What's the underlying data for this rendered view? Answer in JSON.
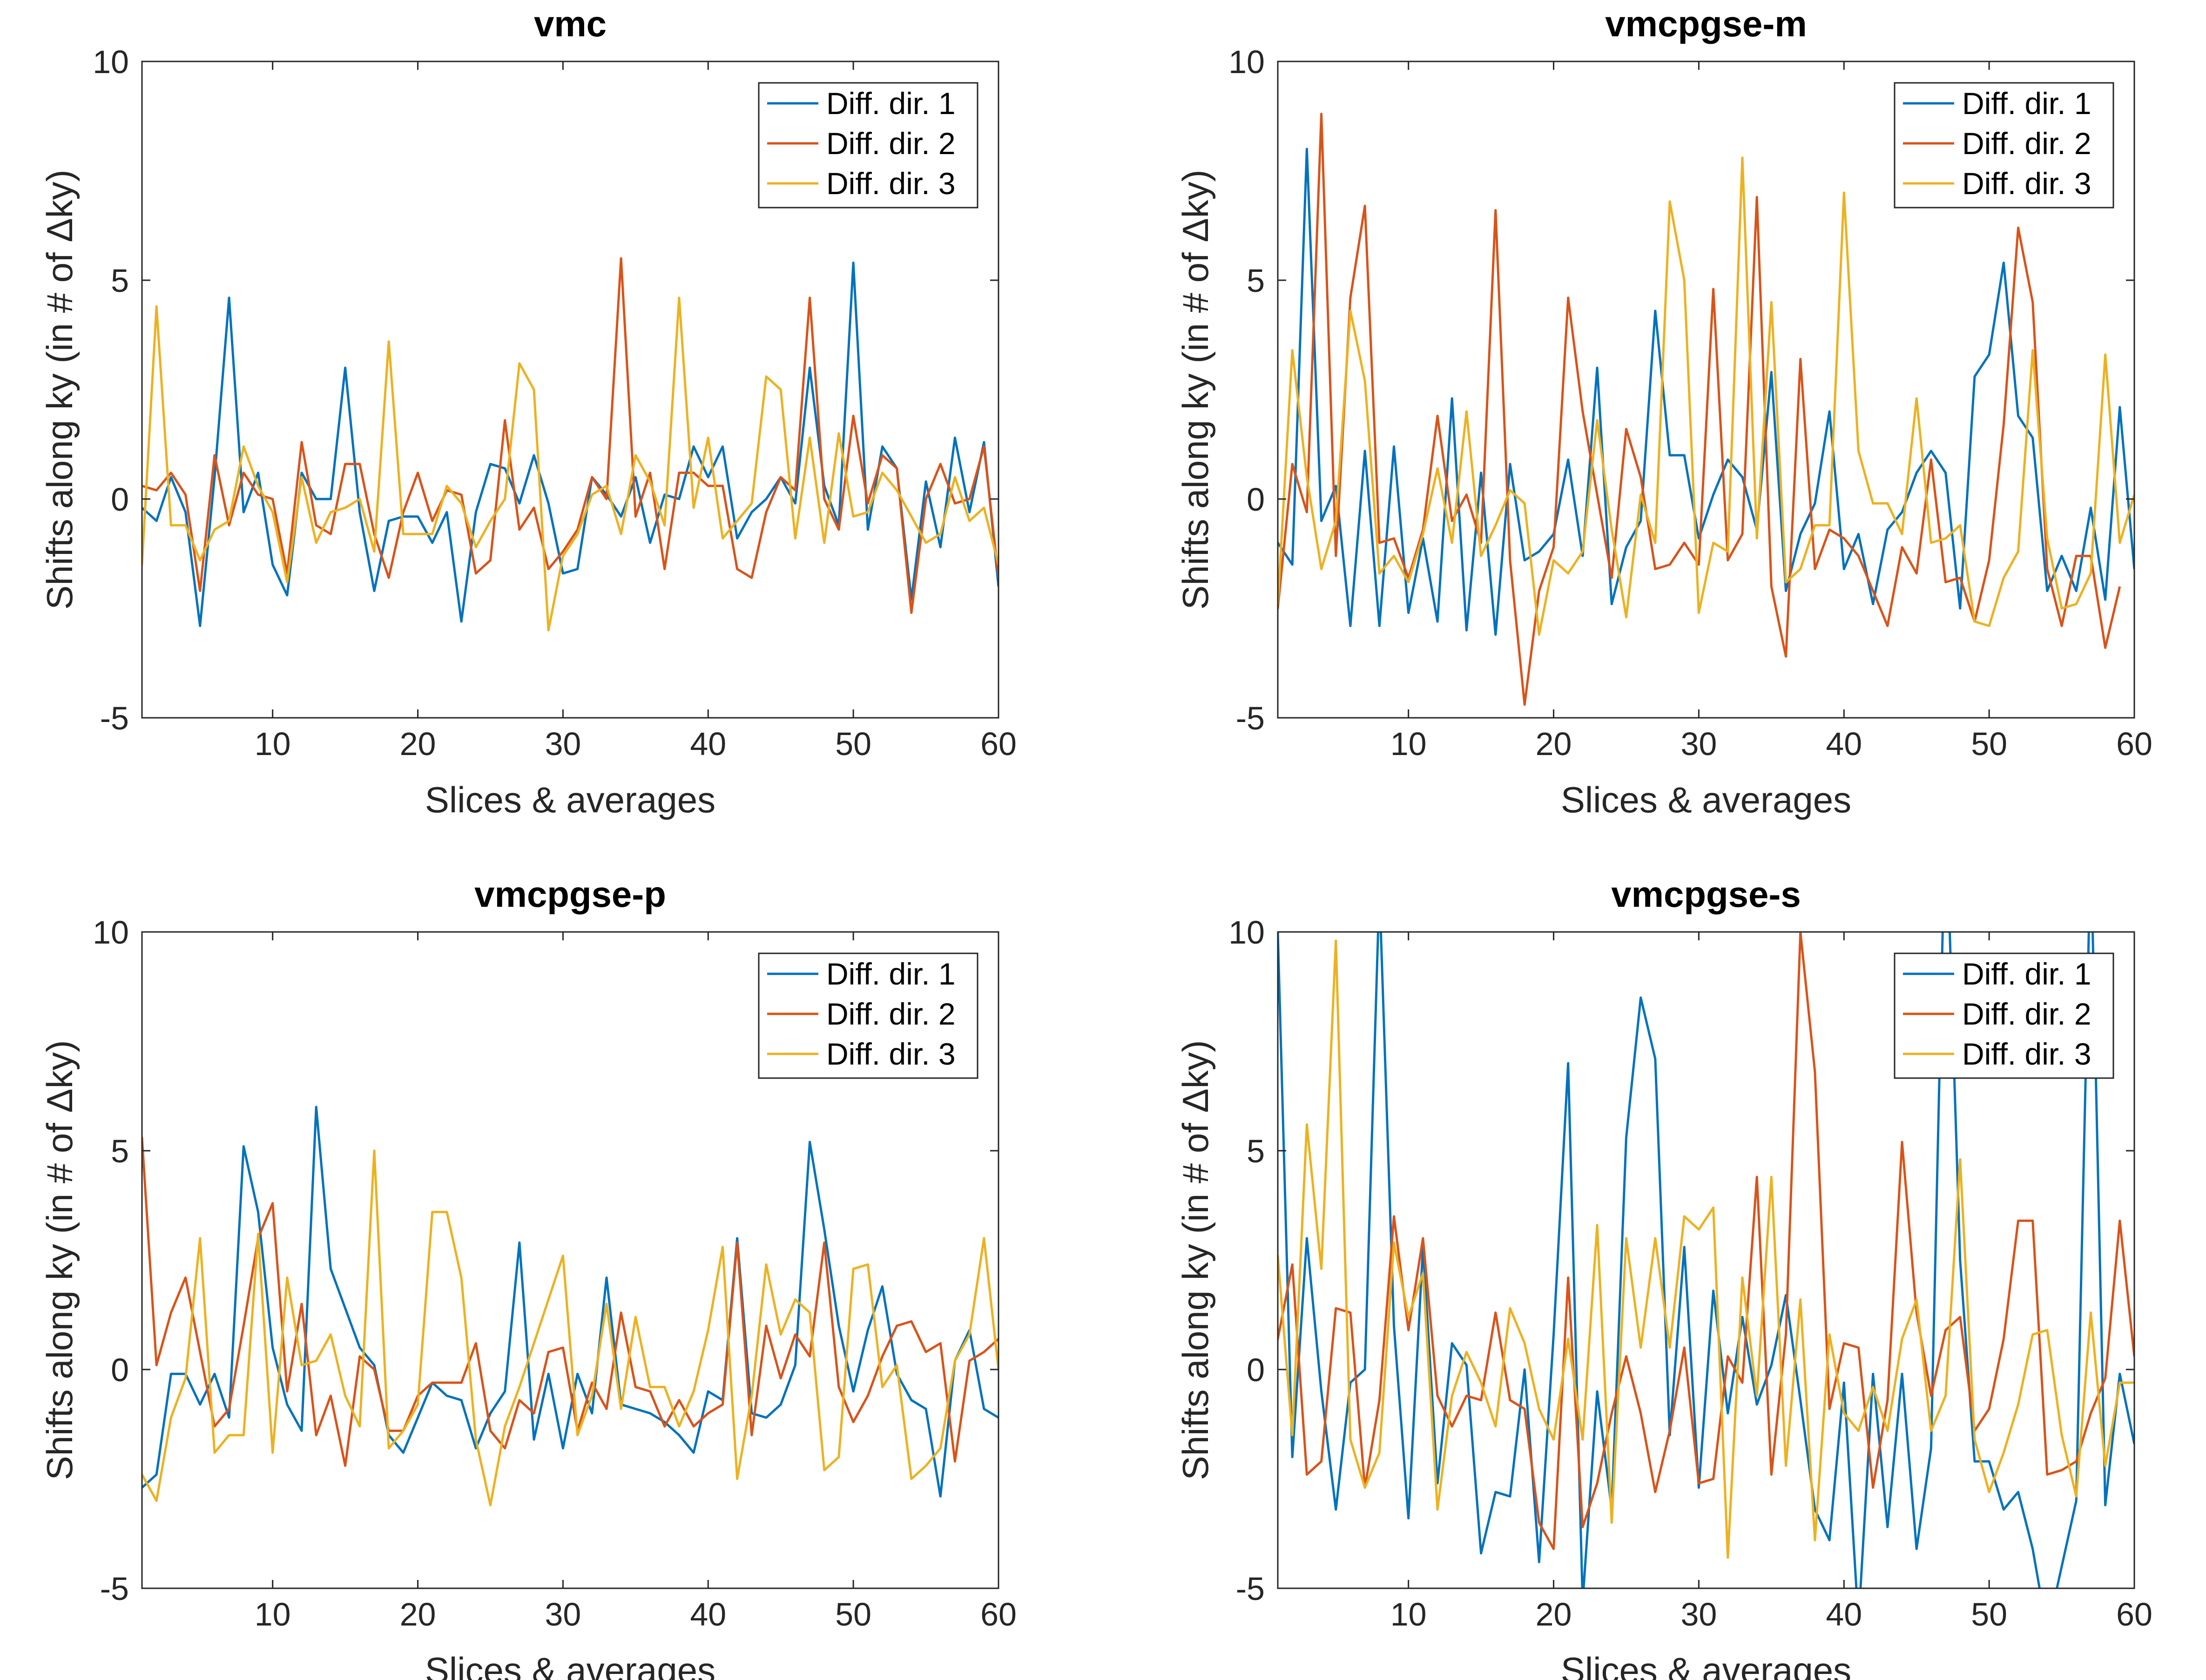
{
  "colors": {
    "series1": "#0072BD",
    "series2": "#D95319",
    "series3": "#EDB120",
    "axis": "#262626",
    "background": "#FFFFFF"
  },
  "chart_data": [
    {
      "type": "line",
      "title": "vmc",
      "xlabel": "Slices & averages",
      "ylabel": "Shifts along ky (in # of  Δky)",
      "xlim": [
        1,
        60
      ],
      "ylim": [
        -5,
        10
      ],
      "xticks": [
        "10",
        "20",
        "30",
        "40",
        "50",
        "60"
      ],
      "yticks": [
        "-5",
        "0",
        "5",
        "10"
      ],
      "legend_position": "top-right",
      "series": [
        {
          "name": "Diff. dir. 1",
          "values": [
            0.0,
            -0.2,
            -0.5,
            0.5,
            -0.3,
            -2.9,
            0.5,
            4.6,
            -0.3,
            0.6,
            -1.5,
            -2.2,
            0.6,
            0.0,
            0.0,
            3.0,
            -0.3,
            -2.1,
            -0.5,
            -0.4,
            -0.4,
            -1.0,
            -0.3,
            -2.8,
            -0.3,
            0.8,
            0.7,
            -0.1,
            1.0,
            -0.1,
            -1.7,
            -1.6,
            0.5,
            0.1,
            -0.4,
            0.5,
            -1.0,
            0.1,
            0.0,
            1.2,
            0.5,
            1.2,
            -0.9,
            -0.3,
            0.0,
            0.5,
            -0.1,
            3.0,
            0.3,
            -0.6,
            5.4,
            -0.7,
            1.2,
            0.7,
            -2.3,
            0.4,
            -1.1,
            1.4,
            -0.3,
            1.3,
            -2.0
          ]
        },
        {
          "name": "Diff. dir. 2",
          "values": [
            -1.1,
            0.3,
            0.2,
            0.6,
            0.1,
            -2.1,
            1.0,
            -0.6,
            0.6,
            0.1,
            0.0,
            -1.7,
            1.3,
            -0.6,
            -0.8,
            0.8,
            0.8,
            -0.8,
            -1.8,
            -0.3,
            0.6,
            -0.5,
            0.2,
            0.1,
            -1.7,
            -1.4,
            1.8,
            -0.7,
            -0.2,
            -1.6,
            -1.2,
            -0.7,
            0.5,
            0.0,
            5.5,
            -0.4,
            0.6,
            -1.6,
            0.6,
            0.6,
            0.3,
            0.3,
            -1.6,
            -1.8,
            -0.3,
            0.5,
            0.2,
            4.6,
            0.0,
            -0.7,
            1.9,
            -0.1,
            1.0,
            0.7,
            -2.6,
            0.0,
            0.8,
            -0.1,
            0.0,
            1.2,
            -1.8
          ]
        },
        {
          "name": "Diff. dir. 3",
          "values": [
            -1.0,
            -1.5,
            4.4,
            -0.6,
            -0.6,
            -1.4,
            -0.7,
            -0.5,
            1.2,
            0.3,
            -0.3,
            -1.9,
            0.5,
            -1.0,
            -0.3,
            -0.2,
            0.0,
            -1.2,
            3.6,
            -0.8,
            -0.8,
            -0.8,
            0.3,
            -0.1,
            -1.1,
            -0.5,
            0.0,
            3.1,
            2.5,
            -3.0,
            -1.3,
            -0.8,
            0.1,
            0.3,
            -0.8,
            1.0,
            0.4,
            -0.6,
            4.6,
            -0.2,
            1.4,
            -0.9,
            -0.5,
            -0.1,
            2.8,
            2.5,
            -0.9,
            1.4,
            -1.0,
            1.5,
            -0.4,
            -0.3,
            0.6,
            0.2,
            -0.4,
            -1.0,
            -0.8,
            0.5,
            -0.5,
            -0.2,
            -1.5
          ]
        }
      ]
    },
    {
      "type": "line",
      "title": "vmcpgse-m",
      "xlabel": "Slices & averages",
      "ylabel": "Shifts along ky (in # of  Δky)",
      "xlim": [
        1,
        60
      ],
      "ylim": [
        -5,
        10
      ],
      "xticks": [
        "10",
        "20",
        "30",
        "40",
        "50",
        "60"
      ],
      "yticks": [
        "-5",
        "0",
        "5",
        "10"
      ],
      "legend_position": "top-right",
      "series": [
        {
          "name": "Diff. dir. 1",
          "values": [
            -0.2,
            -1.0,
            -1.5,
            8.0,
            -0.5,
            0.3,
            -2.9,
            1.1,
            -2.9,
            1.2,
            -2.6,
            -0.9,
            -2.8,
            2.3,
            -3.0,
            0.6,
            -3.1,
            0.8,
            -1.4,
            -1.2,
            -0.8,
            0.9,
            -1.3,
            3.0,
            -2.4,
            -1.1,
            -0.5,
            4.3,
            1.0,
            1.0,
            -0.9,
            0.1,
            0.9,
            0.5,
            -0.7,
            2.9,
            -2.1,
            -0.8,
            -0.1,
            2.0,
            -1.6,
            -0.8,
            -2.4,
            -0.7,
            -0.3,
            0.6,
            1.1,
            0.6,
            -2.5,
            2.8,
            3.3,
            5.4,
            1.9,
            1.4,
            -2.1,
            -1.3,
            -2.1,
            -0.2,
            -2.3,
            2.1,
            -1.6
          ]
        },
        {
          "name": "Diff. dir. 2",
          "values": [
            -1.8,
            -2.5,
            0.8,
            -0.3,
            8.8,
            -1.3,
            4.6,
            6.7,
            -1.0,
            -0.9,
            -1.8,
            -0.7,
            1.9,
            -0.5,
            0.1,
            -1.0,
            6.6,
            -1.4,
            -4.7,
            -2.1,
            -1.1,
            4.6,
            2.0,
            0.1,
            -1.8,
            1.6,
            0.5,
            -1.6,
            -1.5,
            -1.0,
            -1.5,
            4.8,
            -1.4,
            -0.8,
            6.9,
            -2.0,
            -3.6,
            3.2,
            -1.6,
            -0.7,
            -0.9,
            -1.3,
            -2.1,
            -2.9,
            -1.1,
            -1.7,
            0.9,
            -1.9,
            -1.8,
            -2.8,
            -1.4,
            1.7,
            6.2,
            4.5,
            -1.6,
            -2.9,
            -1.3,
            -1.3,
            -3.4,
            -2.0
          ]
        },
        {
          "name": "Diff. dir. 3",
          "values": [
            -2.6,
            -2.4,
            3.4,
            0.5,
            -1.6,
            -0.5,
            4.3,
            2.7,
            -1.7,
            -1.3,
            -1.9,
            -0.8,
            0.7,
            -1.0,
            2.0,
            -1.3,
            -0.6,
            0.2,
            -0.1,
            -3.1,
            -1.4,
            -1.7,
            -1.2,
            1.8,
            -0.7,
            -2.7,
            0.1,
            -1.0,
            6.8,
            5.0,
            -2.6,
            -1.0,
            -1.2,
            7.8,
            -0.9,
            4.5,
            -1.9,
            -1.6,
            -0.6,
            -0.6,
            7.0,
            1.1,
            -0.1,
            -0.1,
            -0.8,
            2.3,
            -1.0,
            -0.9,
            -0.6,
            -2.8,
            -2.9,
            -1.8,
            -1.2,
            3.4,
            -0.9,
            -2.5,
            -2.4,
            -1.7,
            3.3,
            -1.0,
            0.1
          ]
        }
      ]
    },
    {
      "type": "line",
      "title": "vmcpgse-p",
      "xlabel": "Slices & averages",
      "ylabel": "Shifts along ky (in # of  Δky)",
      "xlim": [
        1,
        60
      ],
      "ylim": [
        -5,
        10
      ],
      "xticks": [
        "10",
        "20",
        "30",
        "40",
        "50",
        "60"
      ],
      "yticks": [
        "-5",
        "0",
        "5",
        "10"
      ],
      "legend_position": "top-right",
      "series": [
        {
          "name": "Diff. dir. 1",
          "values": [
            -2.2,
            -2.7,
            -2.4,
            -0.1,
            -0.1,
            -0.8,
            -0.1,
            -1.1,
            5.1,
            3.6,
            0.5,
            -0.8,
            -1.4,
            6.0,
            2.3,
            1.4,
            0.5,
            0.1,
            -1.5,
            -1.9,
            -1.1,
            -0.3,
            -0.6,
            -0.7,
            -1.8,
            -1.0,
            -0.5,
            2.9,
            -1.6,
            -0.1,
            -1.8,
            -0.1,
            -1.0,
            2.1,
            -0.8,
            -0.9,
            -1.0,
            -1.2,
            -1.5,
            -1.9,
            -0.5,
            -0.7,
            3.0,
            -1.0,
            -1.1,
            -0.8,
            0.1,
            5.2,
            3.2,
            1.0,
            -0.5,
            0.9,
            1.9,
            -0.1,
            -0.7,
            -0.9,
            -2.9,
            0.2,
            0.9,
            -0.9,
            -1.1
          ]
        },
        {
          "name": "Diff. dir. 2",
          "values": [
            1.1,
            5.3,
            0.1,
            1.3,
            2.1,
            0.4,
            -1.3,
            -0.9,
            1.0,
            3.0,
            3.8,
            -0.5,
            1.5,
            -1.5,
            -0.6,
            -2.2,
            0.3,
            0.0,
            -1.4,
            -1.4,
            -0.6,
            -0.3,
            -0.3,
            -0.3,
            0.6,
            -1.4,
            -1.8,
            -0.7,
            -1.0,
            0.4,
            0.5,
            -1.4,
            -0.3,
            -0.9,
            1.3,
            -0.4,
            -0.5,
            -1.3,
            -0.7,
            -1.3,
            -1.0,
            -0.8,
            2.9,
            -1.5,
            1.0,
            -0.2,
            0.8,
            0.3,
            2.9,
            -0.4,
            -1.2,
            -0.6,
            0.3,
            1.0,
            1.1,
            0.4,
            0.6,
            -2.1,
            0.2,
            0.4,
            0.7
          ]
        },
        {
          "name": "Diff. dir. 3",
          "values": [
            -2.8,
            -2.4,
            -3.0,
            -1.1,
            -0.2,
            3.0,
            -1.9,
            -1.5,
            -1.5,
            3.1,
            -1.9,
            2.1,
            0.1,
            0.2,
            0.8,
            -0.6,
            -1.3,
            5.0,
            -1.8,
            -1.4,
            -0.8,
            3.6,
            3.6,
            2.1,
            -1.6,
            -3.1,
            -1.3,
            -0.4,
            0.6,
            1.6,
            2.6,
            -1.5,
            -0.6,
            1.5,
            -0.9,
            1.2,
            -0.4,
            -0.4,
            -1.3,
            -0.5,
            0.9,
            2.8,
            -2.5,
            -0.6,
            2.4,
            0.8,
            1.6,
            1.3,
            -2.3,
            -2.0,
            2.3,
            2.4,
            -0.4,
            0.1,
            -2.5,
            -2.2,
            -1.8,
            0.2,
            0.8,
            3.0,
            0.0
          ]
        }
      ]
    },
    {
      "type": "line",
      "title": "vmcpgse-s",
      "xlabel": "Slices & averages",
      "ylabel": "Shifts along ky (in # of  Δky)",
      "xlim": [
        1,
        60
      ],
      "ylim": [
        -5,
        10
      ],
      "xticks": [
        "10",
        "20",
        "30",
        "40",
        "50",
        "60"
      ],
      "yticks": [
        "-5",
        "0",
        "5",
        "10"
      ],
      "legend_position": "top-right",
      "series": [
        {
          "name": "Diff. dir. 1",
          "values": [
            12.0,
            10.0,
            -2.0,
            3.0,
            -0.5,
            -3.2,
            -0.3,
            0.0,
            11.0,
            1.0,
            -3.4,
            2.8,
            -2.6,
            0.6,
            0.1,
            -4.2,
            -2.8,
            -2.9,
            0.0,
            -4.4,
            0.8,
            7.0,
            -5.3,
            -0.5,
            -3.2,
            5.3,
            8.5,
            7.1,
            -1.5,
            2.8,
            -2.7,
            1.8,
            -1.0,
            1.2,
            -0.8,
            0.1,
            1.7,
            -0.7,
            -3.2,
            -3.9,
            -0.3,
            -5.8,
            -0.1,
            -3.6,
            -0.1,
            -4.1,
            -1.8,
            13.0,
            2.5,
            -2.1,
            -2.1,
            -3.2,
            -2.8,
            -4.1,
            -6.0,
            -4.5,
            -3.0,
            12.0,
            -3.1,
            -0.1,
            -1.7
          ]
        },
        {
          "name": "Diff. dir. 2",
          "values": [
            -0.5,
            0.7,
            2.4,
            -2.4,
            -2.1,
            1.4,
            1.3,
            -2.7,
            -0.7,
            3.5,
            0.9,
            3.0,
            -0.6,
            -1.3,
            -0.6,
            -0.7,
            1.3,
            -0.7,
            -0.9,
            -3.5,
            -4.1,
            2.1,
            -3.6,
            -2.6,
            -1.0,
            0.3,
            -1.0,
            -2.8,
            -1.4,
            0.5,
            -2.6,
            -2.5,
            0.3,
            -0.3,
            4.4,
            -2.4,
            0.8,
            10.0,
            6.8,
            -0.9,
            0.6,
            0.5,
            -2.7,
            -0.7,
            5.2,
            1.3,
            -0.6,
            0.9,
            1.2,
            -1.4,
            -0.9,
            0.7,
            3.4,
            3.4,
            -2.4,
            -2.3,
            -2.1,
            -1.0,
            -0.2,
            3.4,
            0.3
          ]
        },
        {
          "name": "Diff. dir. 3",
          "values": [
            -1.1,
            2.6,
            -1.5,
            5.6,
            2.3,
            9.8,
            -1.6,
            -2.7,
            -1.9,
            2.9,
            1.2,
            2.2,
            -3.2,
            -0.6,
            0.4,
            -0.3,
            -1.3,
            1.4,
            0.6,
            -0.9,
            -1.6,
            0.7,
            -1.6,
            3.3,
            -3.5,
            3.0,
            0.5,
            3.0,
            0.5,
            3.5,
            3.2,
            3.7,
            -4.3,
            2.1,
            -0.6,
            4.4,
            -2.2,
            1.6,
            -3.9,
            0.8,
            -1.0,
            -1.4,
            -0.4,
            -1.4,
            0.7,
            1.6,
            -1.4,
            -0.6,
            4.8,
            -1.6,
            -2.8,
            -1.9,
            -0.8,
            0.8,
            0.9,
            -1.5,
            -2.9,
            1.3,
            -2.2,
            -0.3,
            -0.3
          ]
        }
      ]
    }
  ]
}
